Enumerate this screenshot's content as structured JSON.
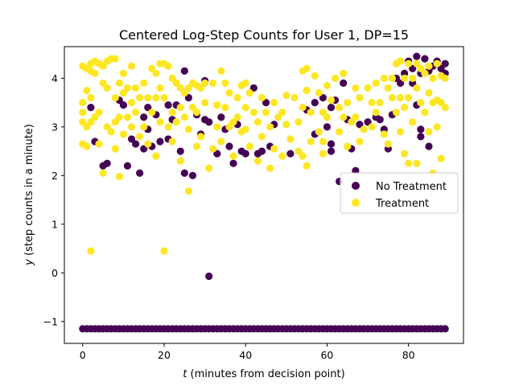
{
  "chart_data": {
    "type": "scatter",
    "title": "Centered Log-Step Counts for User 1, DP=15",
    "xlabel_var": "t",
    "xlabel_rest": " (minutes from decision point)",
    "ylabel_var": "y",
    "ylabel_rest": " (step counts in a minute)",
    "xlim": [
      -4.5,
      93.5
    ],
    "ylim": [
      -1.45,
      4.65
    ],
    "x_ticks": [
      0,
      20,
      40,
      60,
      80
    ],
    "y_ticks": [
      -1,
      0,
      1,
      2,
      3,
      4
    ],
    "legend_position": "center-right",
    "series": [
      {
        "name": "No Treatment",
        "color": "#440154",
        "baseline_value": -1.15,
        "baseline_x_range": [
          0,
          89
        ],
        "points": [
          [
            2,
            3.4
          ],
          [
            3,
            2.7
          ],
          [
            5,
            2.2
          ],
          [
            6,
            2.25
          ],
          [
            9,
            3.55
          ],
          [
            10,
            3.45
          ],
          [
            11,
            2.2
          ],
          [
            12,
            2.75
          ],
          [
            13,
            2.65
          ],
          [
            14,
            2.05
          ],
          [
            15,
            3.2
          ],
          [
            15,
            2.55
          ],
          [
            16,
            3.4
          ],
          [
            16,
            2.95
          ],
          [
            17,
            2.6
          ],
          [
            18,
            3.25
          ],
          [
            19,
            2.7
          ],
          [
            21,
            3.45
          ],
          [
            21,
            2.75
          ],
          [
            22,
            3.15
          ],
          [
            23,
            3.45
          ],
          [
            24,
            2.5
          ],
          [
            25,
            2.05
          ],
          [
            25,
            4.15
          ],
          [
            26,
            3.6
          ],
          [
            27,
            2.0
          ],
          [
            28,
            3.25
          ],
          [
            29,
            2.85
          ],
          [
            30,
            3.95
          ],
          [
            30,
            3.15
          ],
          [
            31,
            3.1
          ],
          [
            31,
            -0.07
          ],
          [
            33,
            2.45
          ],
          [
            34,
            3.2
          ],
          [
            35,
            2.95
          ],
          [
            36,
            2.6
          ],
          [
            37,
            2.25
          ],
          [
            38,
            3.05
          ],
          [
            39,
            2.5
          ],
          [
            40,
            2.45
          ],
          [
            42,
            3.8
          ],
          [
            43,
            2.45
          ],
          [
            44,
            2.5
          ],
          [
            45,
            3.5
          ],
          [
            46,
            2.6
          ],
          [
            47,
            3.05
          ],
          [
            51,
            2.45
          ],
          [
            55,
            3.35
          ],
          [
            57,
            3.5
          ],
          [
            57,
            2.85
          ],
          [
            59,
            3.6
          ],
          [
            60,
            3.0
          ],
          [
            61,
            3.4
          ],
          [
            61,
            2.65
          ],
          [
            61,
            2.5
          ],
          [
            62,
            3.55
          ],
          [
            63,
            1.88
          ],
          [
            64,
            3.9
          ],
          [
            65,
            3.15
          ],
          [
            66,
            2.55
          ],
          [
            67,
            2.1
          ],
          [
            68,
            3.05
          ],
          [
            70,
            3.1
          ],
          [
            72,
            3.2
          ],
          [
            73,
            3.15
          ],
          [
            74,
            2.95
          ],
          [
            75,
            2.55
          ],
          [
            76,
            3.25
          ],
          [
            77,
            4.0
          ],
          [
            78,
            3.9
          ],
          [
            79,
            4.1
          ],
          [
            80,
            4.35
          ],
          [
            81,
            4.2
          ],
          [
            81,
            3.9
          ],
          [
            82,
            4.45
          ],
          [
            82,
            3.45
          ],
          [
            83,
            4.1
          ],
          [
            83,
            2.95
          ],
          [
            83,
            2.8
          ],
          [
            84,
            4.4
          ],
          [
            85,
            4.15
          ],
          [
            85,
            2.6
          ],
          [
            86,
            4.25
          ],
          [
            87,
            4.3
          ],
          [
            87,
            4.35
          ],
          [
            88,
            4.2
          ],
          [
            89,
            4.3
          ],
          [
            89,
            4.1
          ]
        ]
      },
      {
        "name": "Treatment",
        "color": "#fde725",
        "points": [
          [
            0,
            4.25
          ],
          [
            0,
            3.5
          ],
          [
            0,
            3.3
          ],
          [
            0,
            3.1
          ],
          [
            0,
            2.65
          ],
          [
            1,
            4.2
          ],
          [
            1,
            3.75
          ],
          [
            1,
            3.0
          ],
          [
            1,
            2.6
          ],
          [
            2,
            4.3
          ],
          [
            2,
            4.15
          ],
          [
            2,
            3.6
          ],
          [
            2,
            3.1
          ],
          [
            2,
            0.45
          ],
          [
            3,
            4.35
          ],
          [
            3,
            4.1
          ],
          [
            3,
            3.2
          ],
          [
            4,
            4.3
          ],
          [
            4,
            3.3
          ],
          [
            4,
            2.65
          ],
          [
            5,
            4.25
          ],
          [
            5,
            3.9
          ],
          [
            5,
            2.05
          ],
          [
            6,
            4.35
          ],
          [
            6,
            3.8
          ],
          [
            6,
            3.0
          ],
          [
            7,
            4.4
          ],
          [
            7,
            2.9
          ],
          [
            8,
            4.4
          ],
          [
            8,
            3.6
          ],
          [
            8,
            3.1
          ],
          [
            8,
            2.55
          ],
          [
            9,
            3.9
          ],
          [
            9,
            3.2
          ],
          [
            9,
            1.98
          ],
          [
            10,
            4.1
          ],
          [
            10,
            3.7
          ],
          [
            10,
            2.85
          ],
          [
            11,
            3.8
          ],
          [
            11,
            3.2
          ],
          [
            12,
            4.25
          ],
          [
            12,
            3.5
          ],
          [
            12,
            3.0
          ],
          [
            13,
            3.8
          ],
          [
            13,
            3.3
          ],
          [
            14,
            3.6
          ],
          [
            14,
            2.8
          ],
          [
            15,
            3.9
          ],
          [
            15,
            3.0
          ],
          [
            16,
            3.6
          ],
          [
            16,
            2.65
          ],
          [
            17,
            4.2
          ],
          [
            17,
            3.3
          ],
          [
            18,
            4.1
          ],
          [
            18,
            3.6
          ],
          [
            18,
            2.4
          ],
          [
            19,
            4.3
          ],
          [
            19,
            3.8
          ],
          [
            19,
            3.1
          ],
          [
            20,
            4.3
          ],
          [
            20,
            3.6
          ],
          [
            20,
            0.45
          ],
          [
            21,
            4.25
          ],
          [
            21,
            3.0
          ],
          [
            22,
            4.0
          ],
          [
            22,
            3.3
          ],
          [
            22,
            2.7
          ],
          [
            23,
            3.9
          ],
          [
            23,
            3.1
          ],
          [
            24,
            3.8
          ],
          [
            24,
            3.4
          ],
          [
            24,
            2.3
          ],
          [
            25,
            3.7
          ],
          [
            25,
            3.2
          ],
          [
            26,
            3.8
          ],
          [
            26,
            2.95
          ],
          [
            26,
            1.68
          ],
          [
            27,
            3.9
          ],
          [
            27,
            3.4
          ],
          [
            28,
            3.85
          ],
          [
            28,
            3.3
          ],
          [
            28,
            2.6
          ],
          [
            29,
            3.8
          ],
          [
            29,
            2.8
          ],
          [
            30,
            3.9
          ],
          [
            30,
            3.5
          ],
          [
            31,
            2.15
          ],
          [
            32,
            3.9
          ],
          [
            32,
            2.55
          ],
          [
            33,
            3.45
          ],
          [
            33,
            3.0
          ],
          [
            34,
            4.15
          ],
          [
            34,
            2.7
          ],
          [
            35,
            3.9
          ],
          [
            35,
            3.4
          ],
          [
            36,
            3.7
          ],
          [
            36,
            3.0
          ],
          [
            37,
            3.1
          ],
          [
            37,
            2.4
          ],
          [
            38,
            3.6
          ],
          [
            38,
            3.2
          ],
          [
            39,
            3.85
          ],
          [
            39,
            2.9
          ],
          [
            40,
            3.9
          ],
          [
            40,
            3.4
          ],
          [
            40,
            2.95
          ],
          [
            41,
            3.7
          ],
          [
            41,
            2.6
          ],
          [
            42,
            3.3
          ],
          [
            43,
            3.1
          ],
          [
            43,
            2.3
          ],
          [
            44,
            3.6
          ],
          [
            44,
            2.8
          ],
          [
            45,
            3.3
          ],
          [
            46,
            3.0
          ],
          [
            46,
            2.15
          ],
          [
            47,
            3.5
          ],
          [
            47,
            2.55
          ],
          [
            48,
            3.2
          ],
          [
            49,
            3.3
          ],
          [
            49,
            2.4
          ],
          [
            50,
            3.65
          ],
          [
            50,
            3.05
          ],
          [
            51,
            2.75
          ],
          [
            52,
            3.6
          ],
          [
            53,
            2.5
          ],
          [
            53,
            3.1
          ],
          [
            54,
            4.15
          ],
          [
            54,
            3.4
          ],
          [
            54,
            2.4
          ],
          [
            55,
            4.2
          ],
          [
            55,
            2.2
          ],
          [
            55,
            3.75
          ],
          [
            56,
            3.3
          ],
          [
            56,
            2.7
          ],
          [
            57,
            4.05
          ],
          [
            58,
            3.7
          ],
          [
            58,
            2.9
          ],
          [
            59,
            3.3
          ],
          [
            59,
            2.7
          ],
          [
            59,
            2.45
          ],
          [
            60,
            3.85
          ],
          [
            60,
            3.2
          ],
          [
            61,
            3.55
          ],
          [
            62,
            4.0
          ],
          [
            63,
            3.4
          ],
          [
            63,
            2.9
          ],
          [
            64,
            4.1
          ],
          [
            64,
            3.2
          ],
          [
            65,
            3.5
          ],
          [
            65,
            2.6
          ],
          [
            66,
            3.1
          ],
          [
            67,
            3.8
          ],
          [
            67,
            3.2
          ],
          [
            68,
            3.6
          ],
          [
            68,
            2.7
          ],
          [
            69,
            2.95
          ],
          [
            70,
            3.8
          ],
          [
            71,
            3.5
          ],
          [
            71,
            3.0
          ],
          [
            72,
            3.9
          ],
          [
            72,
            3.3
          ],
          [
            73,
            3.5
          ],
          [
            74,
            2.85
          ],
          [
            74,
            4.0
          ],
          [
            75,
            3.8
          ],
          [
            75,
            2.65
          ],
          [
            76,
            4.0
          ],
          [
            76,
            3.6
          ],
          [
            77,
            4.3
          ],
          [
            77,
            3.3
          ],
          [
            78,
            4.35
          ],
          [
            78,
            3.6
          ],
          [
            78,
            2.9
          ],
          [
            79,
            4.0
          ],
          [
            79,
            3.4
          ],
          [
            79,
            2.45
          ],
          [
            80,
            4.3
          ],
          [
            80,
            3.6
          ],
          [
            80,
            2.25
          ],
          [
            81,
            4.0
          ],
          [
            81,
            3.1
          ],
          [
            82,
            4.3
          ],
          [
            82,
            3.8
          ],
          [
            82,
            2.25
          ],
          [
            83,
            4.2
          ],
          [
            83,
            3.5
          ],
          [
            84,
            4.1
          ],
          [
            84,
            3.3
          ],
          [
            85,
            4.25
          ],
          [
            85,
            3.7
          ],
          [
            85,
            2.9
          ],
          [
            86,
            4.0
          ],
          [
            86,
            3.5
          ],
          [
            86,
            2.05
          ],
          [
            87,
            4.3
          ],
          [
            87,
            3.55
          ],
          [
            87,
            3.0
          ],
          [
            88,
            4.05
          ],
          [
            88,
            3.5
          ],
          [
            88,
            2.35
          ],
          [
            89,
            4.0
          ],
          [
            89,
            3.4
          ]
        ]
      }
    ]
  }
}
